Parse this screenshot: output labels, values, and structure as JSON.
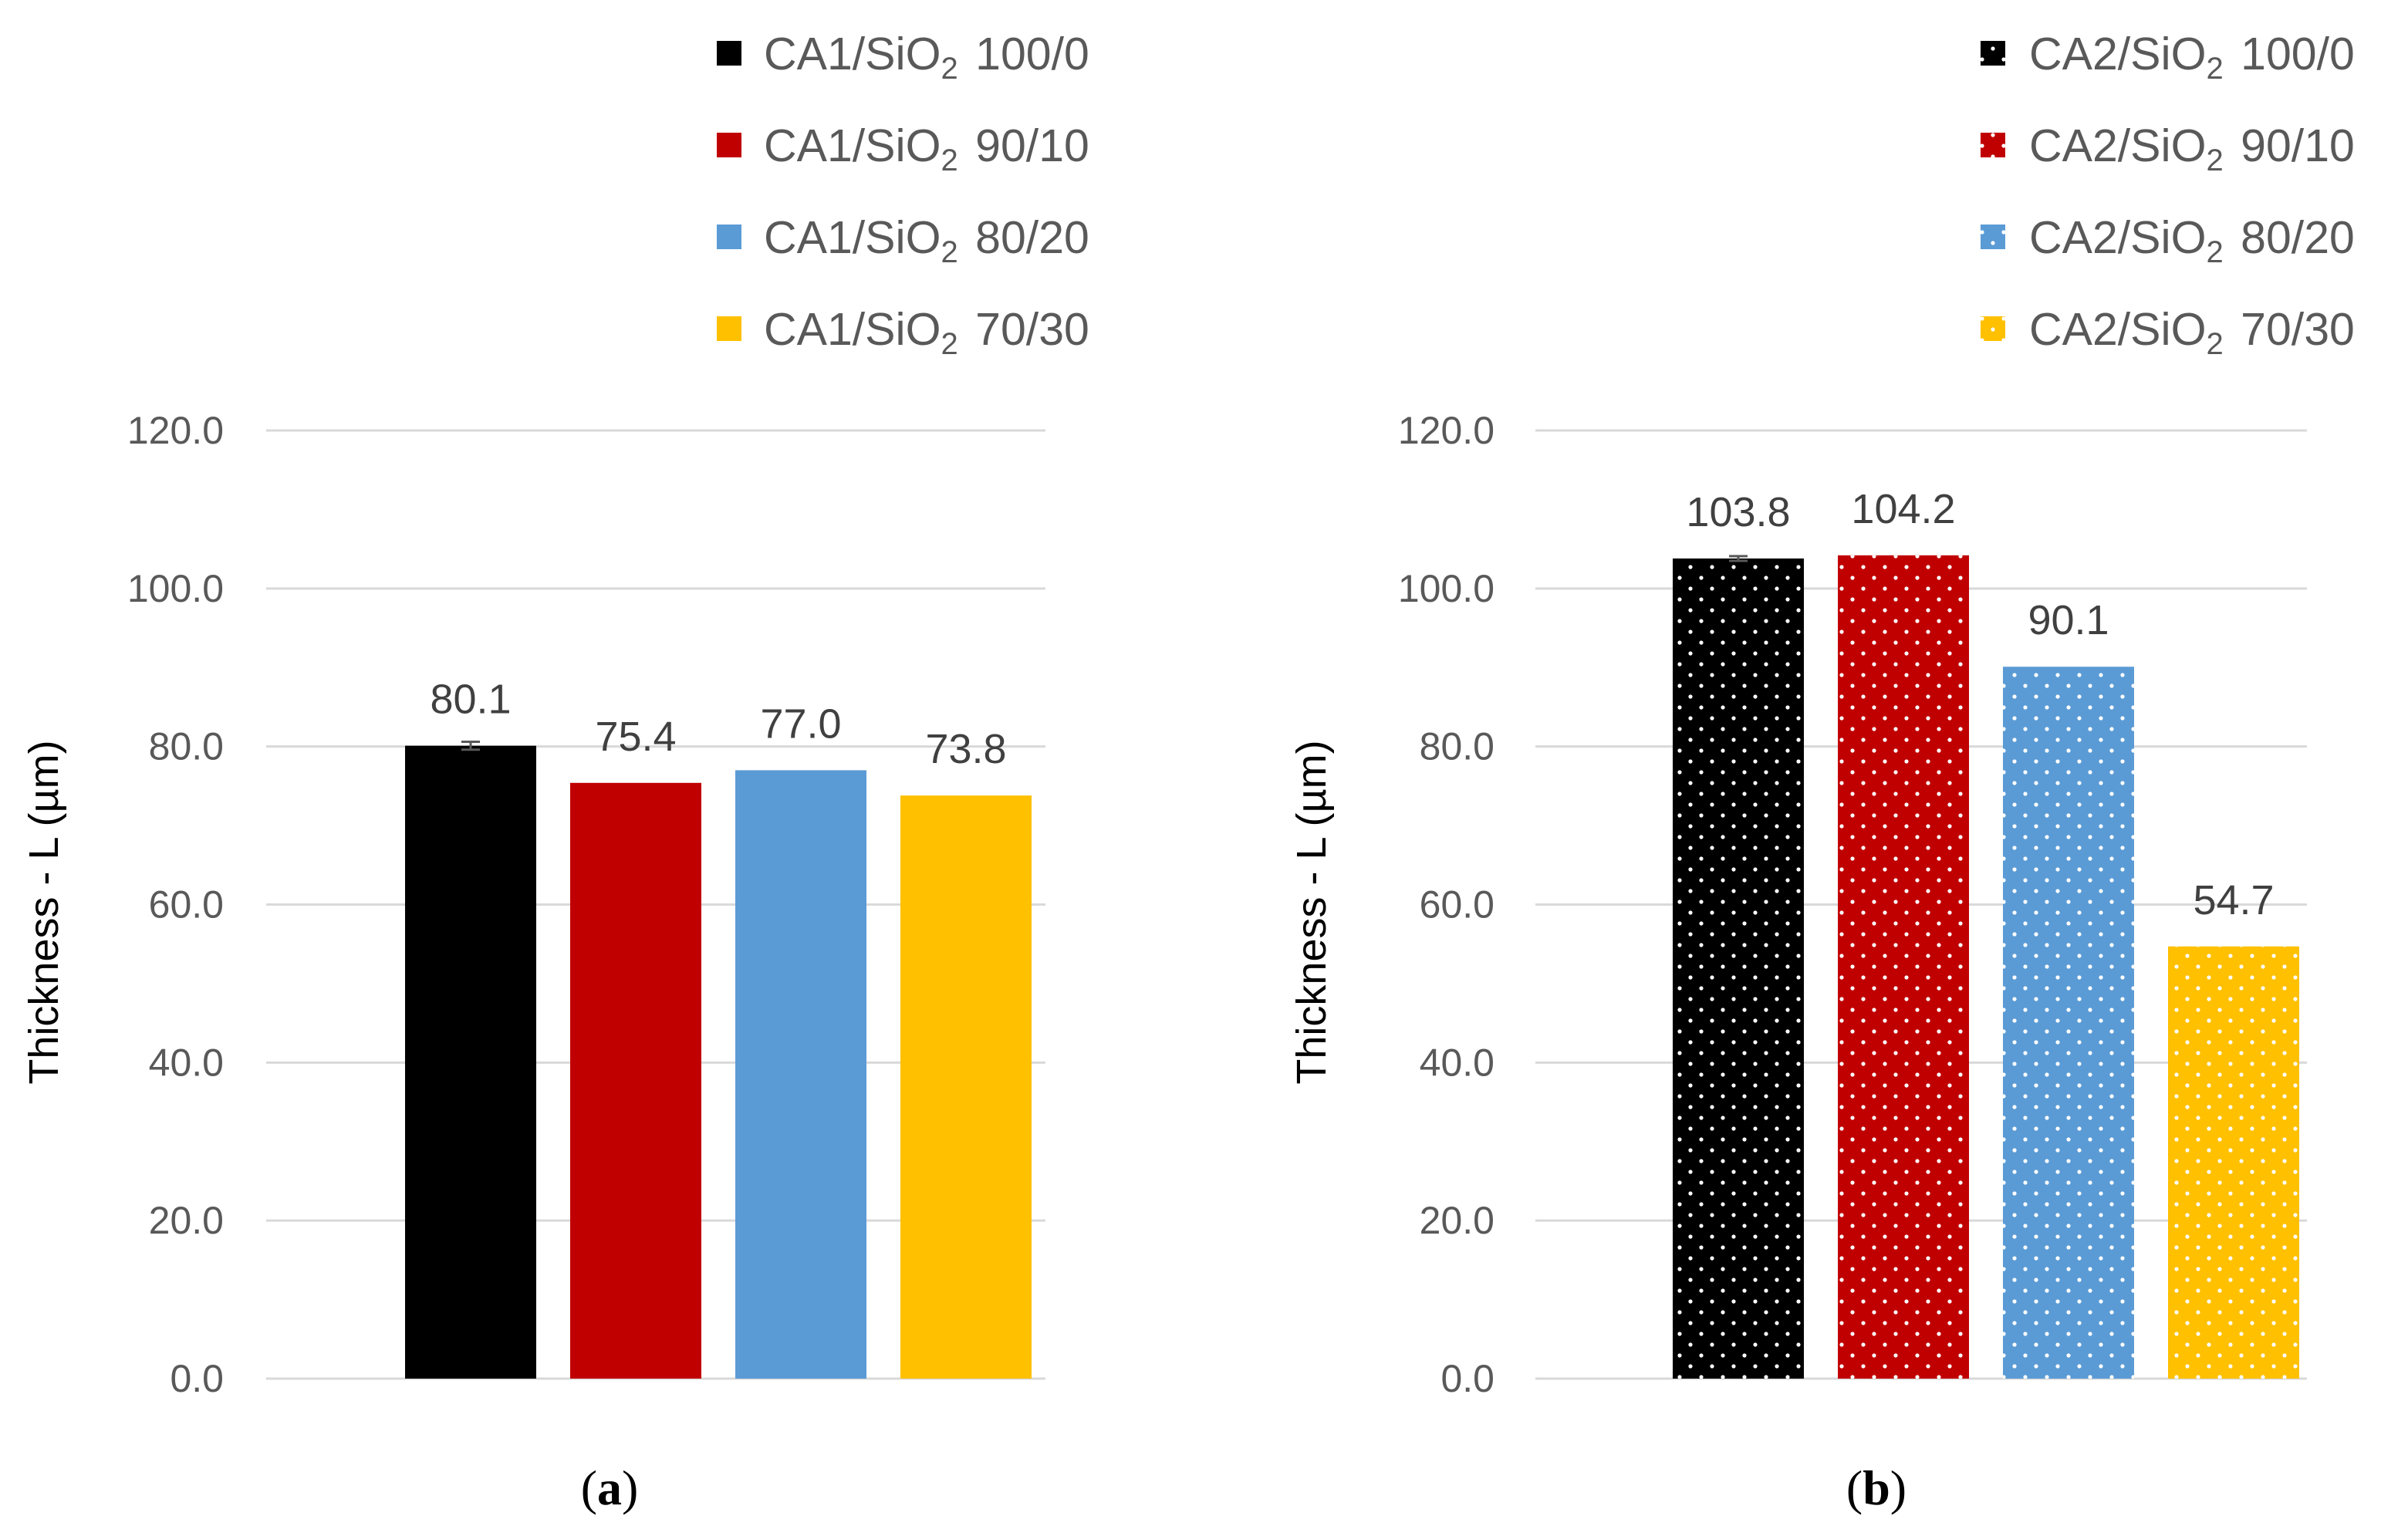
{
  "colors": {
    "gridline": "#d9d9d9",
    "series": [
      "#000000",
      "#c00000",
      "#5b9bd5",
      "#ffc000"
    ],
    "dots": "#ffffff"
  },
  "chart_data": [
    {
      "type": "bar",
      "panel_label": "a",
      "ylabel": "Thickness - L (µm)",
      "ylim": [
        0,
        120
      ],
      "yticks": [
        "0.0",
        "20.0",
        "40.0",
        "60.0",
        "80.0",
        "100.0",
        "120.0"
      ],
      "grid": true,
      "legend_placement": "top",
      "pattern": "solid",
      "series": [
        {
          "name_base": "CA1/SiO",
          "name_sub": "2",
          "name_tail": " 100/0",
          "value": 80.1,
          "label": "80.1",
          "error": 0.5,
          "color": "#000000"
        },
        {
          "name_base": "CA1/SiO",
          "name_sub": "2",
          "name_tail": " 90/10",
          "value": 75.4,
          "label": "75.4",
          "error": 0,
          "color": "#c00000"
        },
        {
          "name_base": "CA1/SiO",
          "name_sub": "2",
          "name_tail": " 80/20",
          "value": 77.0,
          "label": "77.0",
          "error": 0,
          "color": "#5b9bd5"
        },
        {
          "name_base": "CA1/SiO",
          "name_sub": "2",
          "name_tail": " 70/30",
          "value": 73.8,
          "label": "73.8",
          "error": 0,
          "color": "#ffc000"
        }
      ]
    },
    {
      "type": "bar",
      "panel_label": "b",
      "ylabel": "Thickness - L (µm)",
      "ylim": [
        0,
        120
      ],
      "yticks": [
        "0.0",
        "20.0",
        "40.0",
        "60.0",
        "80.0",
        "100.0",
        "120.0"
      ],
      "grid": true,
      "legend_placement": "top",
      "pattern": "dotted",
      "series": [
        {
          "name_base": "CA2/SiO",
          "name_sub": "2",
          "name_tail": " 100/0",
          "value": 103.8,
          "label": "103.8",
          "error": 0.3,
          "color": "#000000"
        },
        {
          "name_base": "CA2/SiO",
          "name_sub": "2",
          "name_tail": " 90/10",
          "value": 104.2,
          "label": "104.2",
          "error": 0,
          "color": "#c00000"
        },
        {
          "name_base": "CA2/SiO",
          "name_sub": "2",
          "name_tail": " 80/20",
          "value": 90.1,
          "label": "90.1",
          "error": 0,
          "color": "#5b9bd5"
        },
        {
          "name_base": "CA2/SiO",
          "name_sub": "2",
          "name_tail": " 70/30",
          "value": 54.7,
          "label": "54.7",
          "error": 0,
          "color": "#ffc000"
        }
      ]
    }
  ]
}
